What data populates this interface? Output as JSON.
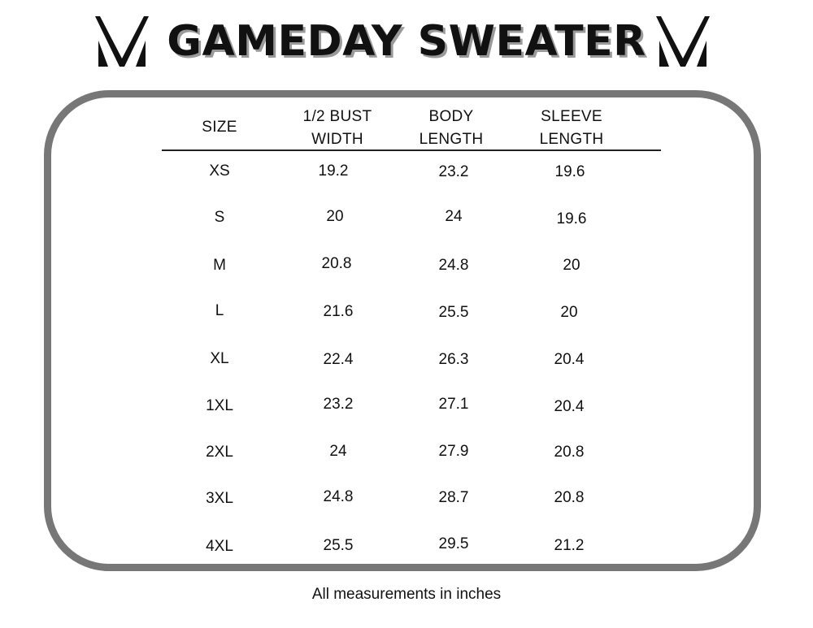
{
  "title": "GAMEDAY SWEATER",
  "logo_icon": "mv-monogram-icon",
  "table": {
    "headers": [
      {
        "line1": "SIZE",
        "line2": ""
      },
      {
        "line1": "1/2 BUST",
        "line2": "WIDTH"
      },
      {
        "line1": "BODY",
        "line2": "LENGTH"
      },
      {
        "line1": "SLEEVE",
        "line2": "LENGTH"
      }
    ],
    "rows": [
      {
        "size": "XS",
        "bust": "19.2",
        "body": "23.2",
        "sleeve": "19.6"
      },
      {
        "size": "S",
        "bust": "20",
        "body": "24",
        "sleeve": "19.6"
      },
      {
        "size": "M",
        "bust": "20.8",
        "body": "24.8",
        "sleeve": "20"
      },
      {
        "size": "L",
        "bust": "21.6",
        "body": "25.5",
        "sleeve": "20"
      },
      {
        "size": "XL",
        "bust": "22.4",
        "body": "26.3",
        "sleeve": "20.4"
      },
      {
        "size": "1XL",
        "bust": "23.2",
        "body": "27.1",
        "sleeve": "20.4"
      },
      {
        "size": "2XL",
        "bust": "24",
        "body": "27.9",
        "sleeve": "20.8"
      },
      {
        "size": "3XL",
        "bust": "24.8",
        "body": "28.7",
        "sleeve": "20.8"
      },
      {
        "size": "4XL",
        "bust": "25.5",
        "body": "29.5",
        "sleeve": "21.2"
      }
    ]
  },
  "footer": "All measurements in inches",
  "colors": {
    "text": "#111111",
    "frame": "#777777",
    "title_shadow": "#9a9a9a"
  }
}
